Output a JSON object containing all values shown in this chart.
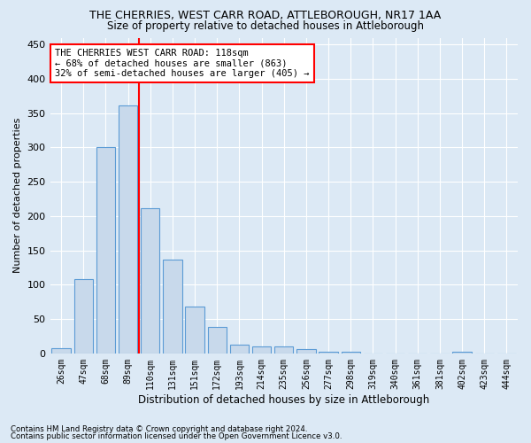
{
  "title1": "THE CHERRIES, WEST CARR ROAD, ATTLEBOROUGH, NR17 1AA",
  "title2": "Size of property relative to detached houses in Attleborough",
  "xlabel": "Distribution of detached houses by size in Attleborough",
  "ylabel": "Number of detached properties",
  "footnote1": "Contains HM Land Registry data © Crown copyright and database right 2024.",
  "footnote2": "Contains public sector information licensed under the Open Government Licence v3.0.",
  "annotation_line1": "THE CHERRIES WEST CARR ROAD: 118sqm",
  "annotation_line2": "← 68% of detached houses are smaller (863)",
  "annotation_line3": "32% of semi-detached houses are larger (405) →",
  "bar_labels": [
    "26sqm",
    "47sqm",
    "68sqm",
    "89sqm",
    "110sqm",
    "131sqm",
    "151sqm",
    "172sqm",
    "193sqm",
    "214sqm",
    "235sqm",
    "256sqm",
    "277sqm",
    "298sqm",
    "319sqm",
    "340sqm",
    "361sqm",
    "381sqm",
    "402sqm",
    "423sqm",
    "444sqm"
  ],
  "bar_values": [
    8,
    108,
    301,
    361,
    212,
    136,
    68,
    38,
    13,
    10,
    10,
    6,
    2,
    2,
    0,
    0,
    0,
    0,
    3,
    0,
    0
  ],
  "bar_color": "#c8d9eb",
  "bar_edge_color": "#5b9bd5",
  "redline_index": 4,
  "ylim": [
    0,
    460
  ],
  "yticks": [
    0,
    50,
    100,
    150,
    200,
    250,
    300,
    350,
    400,
    450
  ],
  "background_color": "#dce9f5",
  "plot_bg_color": "#dce9f5",
  "grid_color": "#ffffff"
}
